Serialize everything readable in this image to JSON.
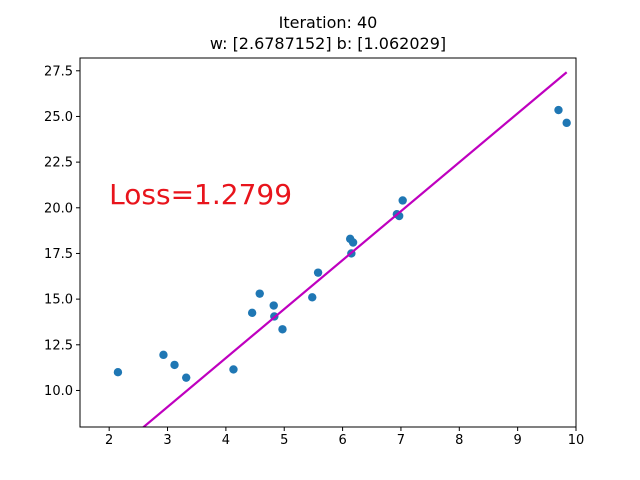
{
  "chart_data": {
    "type": "scatter",
    "title": "Iteration: 40",
    "subtitle": "w: [2.6787152] b: [1.062029]",
    "xlabel": "",
    "ylabel": "",
    "xlim": [
      1.5,
      10
    ],
    "ylim": [
      8.0,
      28.2
    ],
    "x_ticks": [
      2,
      3,
      4,
      5,
      6,
      7,
      8,
      9,
      10
    ],
    "y_ticks": [
      10.0,
      12.5,
      15.0,
      17.5,
      20.0,
      22.5,
      25.0,
      27.5
    ],
    "x_tick_labels": [
      "2",
      "3",
      "4",
      "5",
      "6",
      "7",
      "8",
      "9",
      "10"
    ],
    "y_tick_labels": [
      "10.0",
      "12.5",
      "15.0",
      "17.5",
      "20.0",
      "22.5",
      "25.0",
      "27.5"
    ],
    "grid": false,
    "series": [
      {
        "kind": "scatter",
        "color": "#1f77b4",
        "x": [
          2.15,
          2.93,
          3.12,
          3.32,
          4.13,
          4.45,
          4.58,
          4.82,
          4.83,
          4.97,
          5.48,
          5.58,
          6.13,
          6.15,
          6.18,
          6.93,
          6.97,
          7.03,
          9.7,
          9.84
        ],
        "y": [
          11.0,
          11.95,
          11.4,
          10.7,
          11.15,
          14.25,
          15.3,
          14.65,
          14.05,
          13.35,
          15.1,
          16.45,
          18.3,
          17.5,
          18.1,
          19.65,
          19.55,
          20.4,
          25.35,
          24.65
        ]
      },
      {
        "kind": "line",
        "color": "#bf00bf",
        "w": 2.6787152,
        "b": 1.062029,
        "x_range": [
          2.15,
          9.84
        ]
      }
    ],
    "annotation": {
      "text": "Loss=1.2799",
      "x": 2.0,
      "y": 20.2,
      "color": "#e8141c"
    }
  }
}
